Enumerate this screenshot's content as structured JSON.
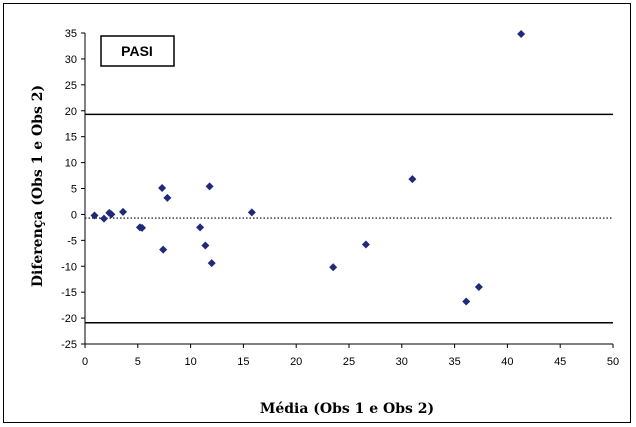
{
  "chart_data": {
    "type": "scatter",
    "title": "PASI",
    "xlabel": "Média (Obs 1 e Obs 2)",
    "ylabel": "Diferença (Obs 1 e Obs 2)",
    "xlim": [
      0,
      50
    ],
    "ylim": [
      -25,
      35
    ],
    "xticks": [
      "0",
      "5",
      "10",
      "15",
      "20",
      "25",
      "30",
      "35",
      "40",
      "45",
      "50"
    ],
    "yticks": [
      "35",
      "30",
      "25",
      "20",
      "15",
      "10",
      "5",
      "0",
      "-5",
      "-10",
      "-15",
      "-20",
      "-25"
    ],
    "grid": false,
    "series": [
      {
        "marker": "diamond",
        "color": "#1f2a7a",
        "x": [
          0.9,
          1.8,
          2.3,
          2.5,
          3.6,
          5.2,
          5.4,
          7.3,
          7.4,
          7.8,
          10.9,
          11.4,
          11.8,
          12.0,
          15.8,
          23.5,
          26.6,
          31.0,
          36.1,
          37.3,
          41.3
        ],
        "y": [
          -0.2,
          -0.8,
          0.3,
          0.0,
          0.5,
          -2.5,
          -2.6,
          5.1,
          -6.8,
          3.2,
          -2.5,
          -6.0,
          5.4,
          -9.4,
          0.4,
          -10.2,
          -5.8,
          6.8,
          -16.8,
          -14.0,
          34.8
        ]
      }
    ],
    "reference_lines": [
      {
        "y": 19.3,
        "style": "solid",
        "color": "#000000"
      },
      {
        "y": -0.7,
        "style": "dotted",
        "color": "#000000"
      },
      {
        "y": -20.9,
        "style": "solid",
        "color": "#000000"
      }
    ]
  }
}
